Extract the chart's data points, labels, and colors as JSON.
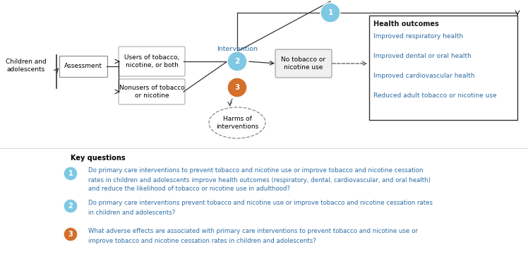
{
  "background_color": "#ffffff",
  "colors": {
    "blue_circle_fill": "#7ec8e3",
    "blue_circle_edge": "#5a9dbf",
    "orange_circle_fill": "#d4702a",
    "blue_text": "#2e6da4",
    "box_edge": "#888888",
    "box_rounded_edge": "#999999",
    "arrow_color": "#333333",
    "health_box_edge": "#333333"
  },
  "users_text": "Users of tobacco,\nnicotine, or both",
  "nonusers_text": "Nonusers of tobacco\nor nicotine",
  "assessment_text": "Assessment",
  "children_text": "Children and\nadolescents",
  "intervention_text": "Intervention",
  "no_tobacco_text": "No tobacco or\nnicotine use",
  "harms_text": "Harms of\ninterventions",
  "health_title": "Health outcomes",
  "health_items": [
    "Improved respiratory health",
    "Improved dental or oral health",
    "Improved cardiovascular health",
    "Reduced adult tobacco or nicotine use"
  ],
  "kq_title": "Key questions",
  "kq": [
    {
      "num": "1",
      "color": "#7ec8e3",
      "text_line1": "Do primary care interventions to prevent tobacco and nicotine use or improve tobacco and nicotine cessation",
      "text_line2": "rates in children and adolescents improve health outcomes (respiratory, dental, cardiovascular, and oral health)",
      "text_line3": "and reduce the likelihood of tobacco or nicotine use in adulthood?"
    },
    {
      "num": "2",
      "color": "#7ec8e3",
      "text_line1": "Do primary care interventions prevent tobacco and nicotine use or improve tobacco and nicotine cessation rates",
      "text_line2": "in children and adolescents?",
      "text_line3": ""
    },
    {
      "num": "3",
      "color": "#d4702a",
      "text_line1": "What adverse effects are associated with primary care interventions to prevent tobacco and nicotine use or",
      "text_line2": "improve tobacco and nicotine cessation rates in children and adolescents?",
      "text_line3": ""
    }
  ]
}
